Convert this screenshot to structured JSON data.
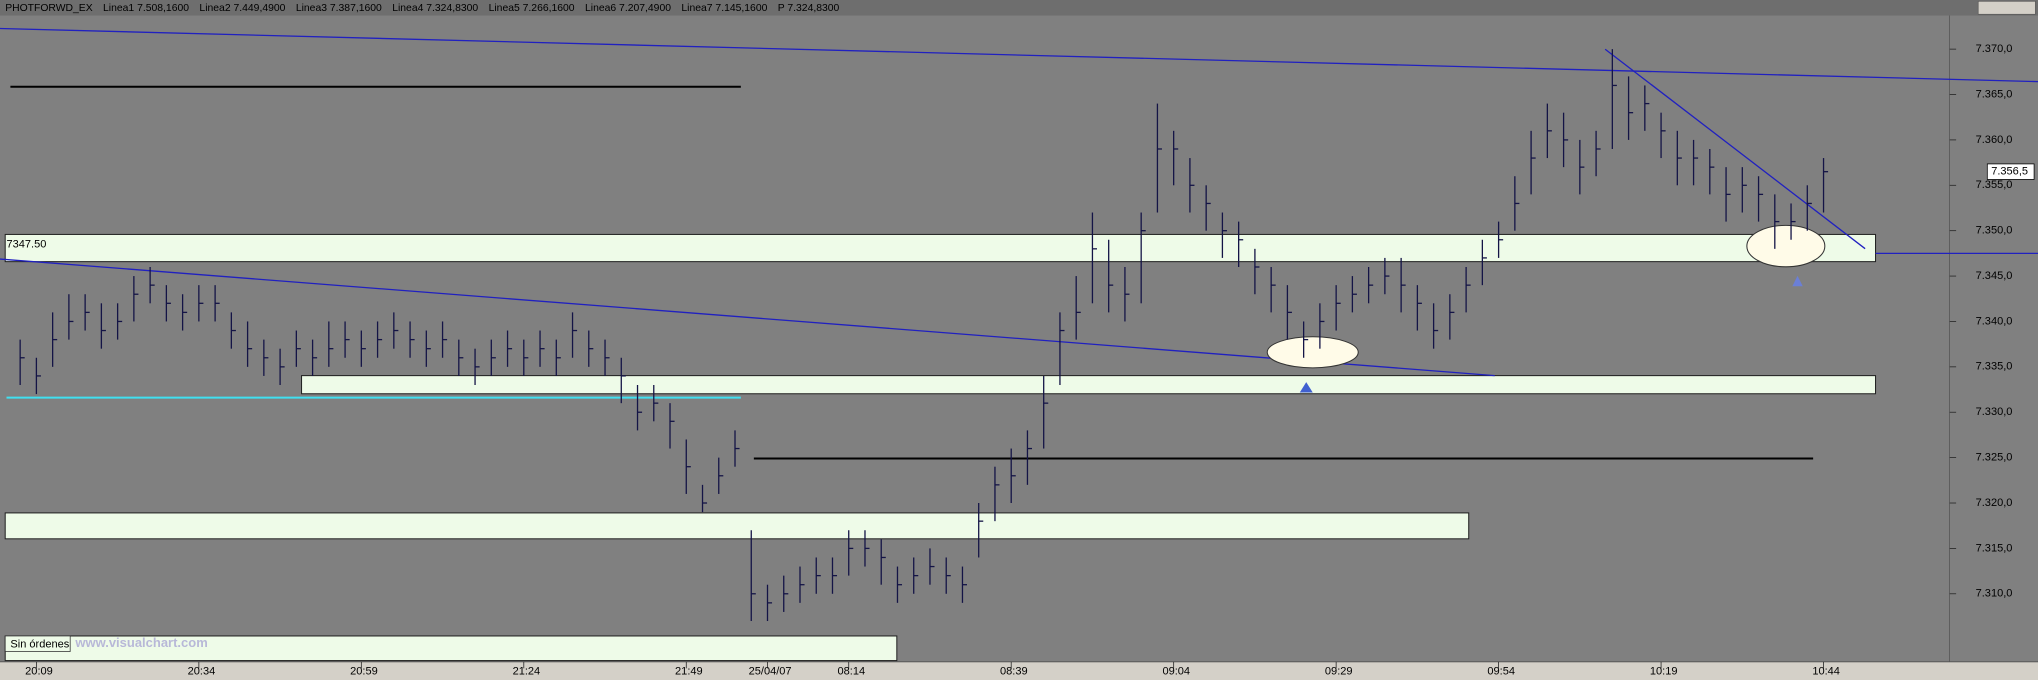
{
  "header": [
    {
      "text": "PHOTFORWD_EX",
      "color": "#c00000"
    },
    {
      "text": "Linea1 7.508,1600",
      "color": "#c00000"
    },
    {
      "text": "Linea2 7.449,4900",
      "color": "#008000"
    },
    {
      "text": "Linea3 7.387,1600",
      "color": "#000080"
    },
    {
      "text": "Linea4 7.324,8300",
      "color": "#000000"
    },
    {
      "text": "Linea5 7.266,1600",
      "color": "#008080"
    },
    {
      "text": "Linea6 7.207,4900",
      "color": "#800080"
    },
    {
      "text": "Linea7 7.145,1600",
      "color": "#000080"
    },
    {
      "text": "P 7.324,8300",
      "color": "#c00000"
    }
  ],
  "footer": {
    "status": "Sin órdenes",
    "site": "www.visualchart.com"
  },
  "chart_data": {
    "type": "ohlc",
    "bar_color": "#141446",
    "categories": [
      null,
      "20:09",
      null,
      null,
      null,
      null,
      null,
      null,
      null,
      null,
      null,
      "20:34",
      null,
      null,
      null,
      null,
      null,
      null,
      null,
      null,
      null,
      "20:59",
      null,
      null,
      null,
      null,
      null,
      null,
      null,
      null,
      null,
      "21:24",
      null,
      null,
      null,
      null,
      null,
      null,
      null,
      null,
      null,
      "21:49",
      null,
      null,
      null,
      null,
      "25/04/07",
      null,
      null,
      null,
      null,
      "08:14",
      null,
      null,
      null,
      null,
      null,
      null,
      null,
      null,
      null,
      "08:39",
      null,
      null,
      null,
      null,
      null,
      null,
      null,
      null,
      null,
      "09:04",
      null,
      null,
      null,
      null,
      null,
      null,
      null,
      null,
      null,
      "09:29",
      null,
      null,
      null,
      null,
      null,
      null,
      null,
      null,
      null,
      "09:54",
      null,
      null,
      null,
      null,
      null,
      null,
      null,
      null,
      null,
      "10:19",
      null,
      null,
      null,
      null,
      null,
      null,
      null,
      null,
      null,
      "10:44"
    ],
    "high": [
      7338,
      7336,
      7341,
      7343,
      7343,
      7342,
      7342,
      7345,
      7346,
      7344,
      7343,
      7344,
      7344,
      7341,
      7340,
      7338,
      7337,
      7339,
      7338,
      7340,
      7340,
      7339,
      7340,
      7341,
      7340,
      7339,
      7340,
      7338,
      7337,
      7338,
      7339,
      7338,
      7339,
      7338,
      7341,
      7339,
      7338,
      7336,
      7333,
      7333,
      7331,
      7327,
      7322,
      7325,
      7328,
      7317,
      7311,
      7312,
      7313,
      7314,
      7314,
      7317,
      7317,
      7316,
      7313,
      7314,
      7315,
      7314,
      7313,
      7320,
      7324,
      7326,
      7328,
      7334,
      7341,
      7345,
      7352,
      7349,
      7346,
      7352,
      7364,
      7361,
      7358,
      7355,
      7352,
      7351,
      7348,
      7346,
      7344,
      7340,
      7342,
      7344,
      7345,
      7346,
      7347,
      7347,
      7344,
      7342,
      7343,
      7346,
      7349,
      7351,
      7356,
      7361,
      7364,
      7363,
      7360,
      7361,
      7370,
      7367,
      7366,
      7363,
      7361,
      7360,
      7359,
      7357,
      7357,
      7356,
      7354,
      7353,
      7355,
      7358
    ],
    "low": [
      7333,
      7332,
      7335,
      7338,
      7339,
      7337,
      7338,
      7340,
      7342,
      7340,
      7339,
      7340,
      7340,
      7337,
      7335,
      7334,
      7333,
      7335,
      7334,
      7335,
      7336,
      7335,
      7336,
      7337,
      7336,
      7335,
      7336,
      7334,
      7333,
      7334,
      7335,
      7334,
      7335,
      7334,
      7336,
      7335,
      7334,
      7331,
      7328,
      7329,
      7326,
      7321,
      7319,
      7321,
      7324,
      7307,
      7307,
      7308,
      7309,
      7310,
      7310,
      7312,
      7313,
      7311,
      7309,
      7310,
      7311,
      7310,
      7309,
      7314,
      7318,
      7320,
      7322,
      7326,
      7333,
      7338,
      7342,
      7341,
      7340,
      7342,
      7352,
      7355,
      7352,
      7350,
      7347,
      7346,
      7343,
      7341,
      7338,
      7336,
      7337,
      7339,
      7341,
      7342,
      7343,
      7341,
      7339,
      7337,
      7338,
      7341,
      7344,
      7347,
      7350,
      7354,
      7358,
      7357,
      7354,
      7356,
      7359,
      7360,
      7361,
      7358,
      7355,
      7355,
      7354,
      7351,
      7352,
      7351,
      7348,
      7349,
      7350,
      7352
    ],
    "close": [
      7336,
      7334,
      7338,
      7340,
      7341,
      7339,
      7340,
      7343,
      7344,
      7342,
      7341,
      7342,
      7342,
      7339,
      7337,
      7336,
      7335,
      7337,
      7336,
      7337,
      7338,
      7337,
      7338,
      7339,
      7338,
      7337,
      7338,
      7336,
      7335,
      7336,
      7337,
      7336,
      7337,
      7336,
      7339,
      7337,
      7336,
      7334,
      7330,
      7331,
      7329,
      7324,
      7320,
      7323,
      7326,
      7310,
      7309,
      7310,
      7311,
      7312,
      7312,
      7315,
      7315,
      7314,
      7311,
      7312,
      7313,
      7312,
      7311,
      7318,
      7322,
      7323,
      7326,
      7331,
      7339,
      7341,
      7348,
      7344,
      7343,
      7350,
      7359,
      7359,
      7355,
      7353,
      7350,
      7349,
      7346,
      7344,
      7341,
      7338,
      7340,
      7342,
      7343,
      7344,
      7345,
      7344,
      7342,
      7339,
      7341,
      7344,
      7347,
      7349,
      7353,
      7358,
      7361,
      7360,
      7357,
      7359,
      7366,
      7363,
      7364,
      7361,
      7358,
      7358,
      7357,
      7354,
      7355,
      7354,
      7351,
      7351,
      7353,
      7356.5
    ],
    "ylim": [
      7302.5,
      7373.7
    ],
    "yticks": [
      {
        "value": 7310,
        "label": "7.310,0"
      },
      {
        "value": 7315,
        "label": "7.315,0"
      },
      {
        "value": 7320,
        "label": "7.320,0"
      },
      {
        "value": 7325,
        "label": "7.325,0"
      },
      {
        "value": 7330,
        "label": "7.330,0"
      },
      {
        "value": 7335,
        "label": "7.335,0"
      },
      {
        "value": 7340,
        "label": "7.340,0"
      },
      {
        "value": 7345,
        "label": "7.345,0"
      },
      {
        "value": 7350,
        "label": "7.350,0"
      },
      {
        "value": 7355,
        "label": "7.355,0"
      },
      {
        "value": 7360,
        "label": "7.360,0"
      },
      {
        "value": 7365,
        "label": "7.365,0"
      },
      {
        "value": 7370,
        "label": "7.370,0"
      }
    ],
    "last_price": {
      "value": 7356.5,
      "label": "7.356,5"
    },
    "level": {
      "value": 7347.5,
      "label": "7347.50",
      "color": "#2020c0"
    }
  }
}
